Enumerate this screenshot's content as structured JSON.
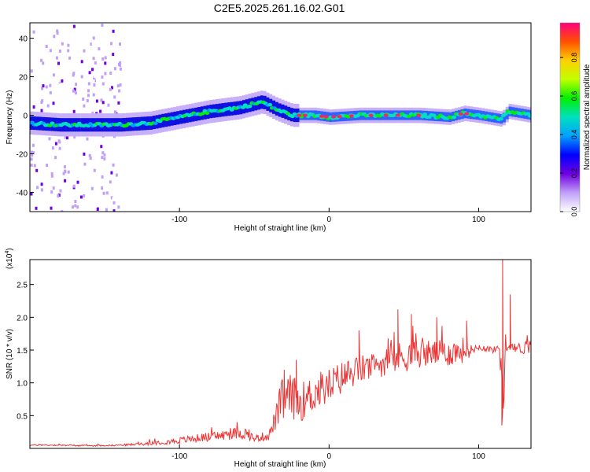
{
  "title": "C2E5.2025.261.16.02.G01",
  "chart_data": [
    {
      "type": "heatmap",
      "xlabel": "Height of straight line (km)",
      "ylabel": "Frequency (Hz)",
      "xlim": [
        -200,
        135
      ],
      "ylim": [
        -50,
        48
      ],
      "xticks": [
        -100,
        0,
        100
      ],
      "xtick_labels": [
        "-100",
        "0",
        "100"
      ],
      "yticks": [
        -40,
        -20,
        0,
        20,
        40
      ],
      "ytick_labels": [
        "-40",
        "-20",
        "0",
        "20",
        "40"
      ],
      "colorbar": {
        "label": "Normalized spectral amplitude",
        "range": [
          0.0,
          0.98
        ],
        "ticks": [
          0.0,
          0.2,
          0.4,
          0.6,
          0.8
        ],
        "tick_labels": [
          "0.0",
          "0.2",
          "0.4",
          "0.6",
          "0.8"
        ]
      },
      "ridge": {
        "x": [
          -200,
          -180,
          -160,
          -140,
          -120,
          -100,
          -80,
          -60,
          -45,
          -35,
          -25,
          -20,
          -10,
          0,
          20,
          40,
          60,
          80,
          90,
          100,
          115,
          120,
          135
        ],
        "y": [
          -4,
          -5,
          -5,
          -5,
          -4,
          -1,
          2,
          4,
          7,
          3,
          0,
          0,
          0,
          -1,
          0,
          0,
          0,
          -1,
          1,
          0,
          -2,
          2,
          0
        ]
      }
    },
    {
      "type": "line",
      "xlabel": "Height of straight line (km)",
      "ylabel": "SNR (10 * v/v)",
      "scale_label": "(x10",
      "scale_exponent": "4",
      "scale_suffix": ")",
      "color": "#ee3333",
      "xlim": [
        -200,
        135
      ],
      "ylim": [
        0,
        2.88
      ],
      "xticks": [
        -100,
        0,
        100
      ],
      "xtick_labels": [
        "-100",
        "0",
        "100"
      ],
      "yticks": [
        0.5,
        1.0,
        1.5,
        2.0,
        2.5
      ],
      "ytick_labels": [
        "0.5",
        "1.0",
        "1.5",
        "2.0",
        "2.5"
      ],
      "x": [
        -200,
        -180,
        -160,
        -140,
        -130,
        -120,
        -100,
        -90,
        -80,
        -70,
        -60,
        -55,
        -50,
        -40,
        -35,
        -32,
        -30,
        -25,
        -20,
        -15,
        -10,
        0,
        10,
        20,
        30,
        40,
        50,
        60,
        70,
        80,
        90,
        95,
        100,
        110,
        114,
        116,
        118,
        120,
        125,
        135
      ],
      "values": [
        0.05,
        0.05,
        0.04,
        0.05,
        0.06,
        0.08,
        0.12,
        0.15,
        0.18,
        0.2,
        0.24,
        0.22,
        0.15,
        0.2,
        0.5,
        0.7,
        0.75,
        0.8,
        0.7,
        0.75,
        0.85,
        0.95,
        1.1,
        1.2,
        1.25,
        1.35,
        1.4,
        1.45,
        1.45,
        1.45,
        1.5,
        1.5,
        1.55,
        1.5,
        1.55,
        0.7,
        1.5,
        1.55,
        1.52,
        1.55
      ],
      "noise": [
        0.01,
        0.01,
        0.01,
        0.01,
        0.02,
        0.03,
        0.05,
        0.06,
        0.07,
        0.08,
        0.1,
        0.1,
        0.05,
        0.08,
        0.2,
        0.35,
        0.35,
        0.35,
        0.3,
        0.3,
        0.3,
        0.28,
        0.25,
        0.22,
        0.2,
        0.22,
        0.25,
        0.22,
        0.2,
        0.2,
        0.2,
        0.08,
        0.05,
        0.05,
        0.05,
        0.5,
        0.3,
        0.05,
        0.08,
        0.12
      ],
      "peaks": [
        {
          "x": -30,
          "y": 1.2
        },
        {
          "x": -22,
          "y": 1.35
        },
        {
          "x": 20,
          "y": 1.8
        },
        {
          "x": 46,
          "y": 2.12
        },
        {
          "x": 55,
          "y": 2.05
        },
        {
          "x": 72,
          "y": 2.0
        },
        {
          "x": 92,
          "y": 1.95
        },
        {
          "x": 116,
          "y": 2.88
        },
        {
          "x": 115.5,
          "y": 0.35
        },
        {
          "x": 121,
          "y": 2.35
        }
      ]
    }
  ]
}
